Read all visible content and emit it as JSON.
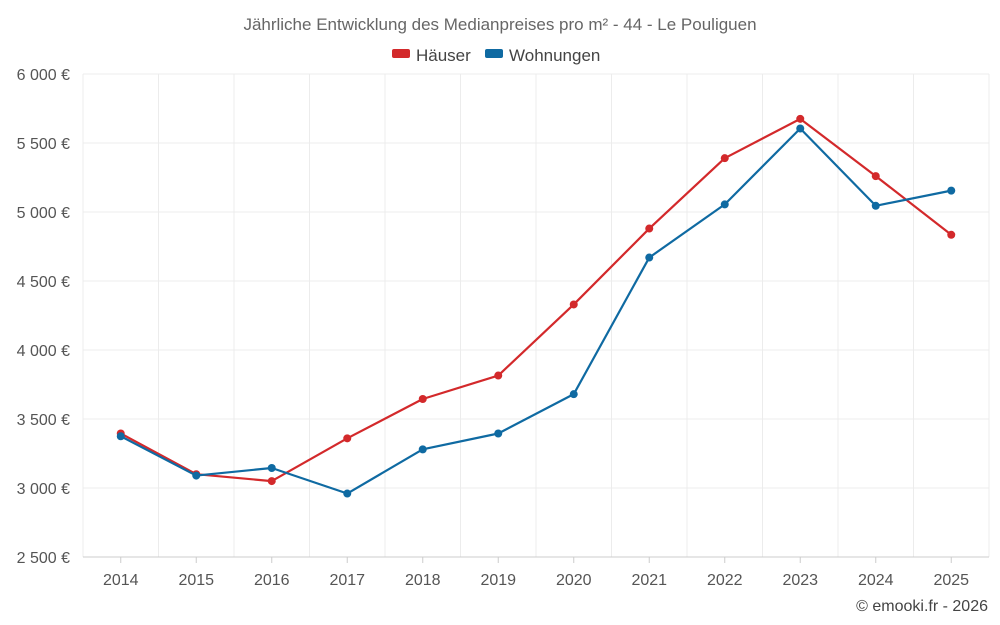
{
  "chart_data": {
    "type": "line",
    "title": "Jährliche Entwicklung des Medianpreises pro m² - 44 - Le Pouliguen",
    "xlabel": "",
    "ylabel": "",
    "categories": [
      "2014",
      "2015",
      "2016",
      "2017",
      "2018",
      "2019",
      "2020",
      "2021",
      "2022",
      "2023",
      "2024",
      "2025"
    ],
    "ylim": [
      2500,
      6000
    ],
    "yticks": [
      2500,
      3000,
      3500,
      4000,
      4500,
      5000,
      5500,
      6000
    ],
    "ytick_labels": [
      "2 500 €",
      "3 000 €",
      "3 500 €",
      "4 000 €",
      "4 500 €",
      "5 000 €",
      "5 500 €",
      "6 000 €"
    ],
    "grid": true,
    "legend_position": "top-center",
    "series": [
      {
        "name": "Häuser",
        "color": "#d3292b",
        "values": [
          3395,
          3100,
          3050,
          3360,
          3645,
          3815,
          4330,
          4880,
          5390,
          5675,
          5260,
          4835
        ]
      },
      {
        "name": "Wohnungen",
        "color": "#0f6aa2",
        "values": [
          3375,
          3090,
          3145,
          2960,
          3280,
          3395,
          3680,
          4670,
          5055,
          5605,
          5045,
          5155
        ]
      }
    ]
  },
  "credit": "© emooki.fr - 2026"
}
